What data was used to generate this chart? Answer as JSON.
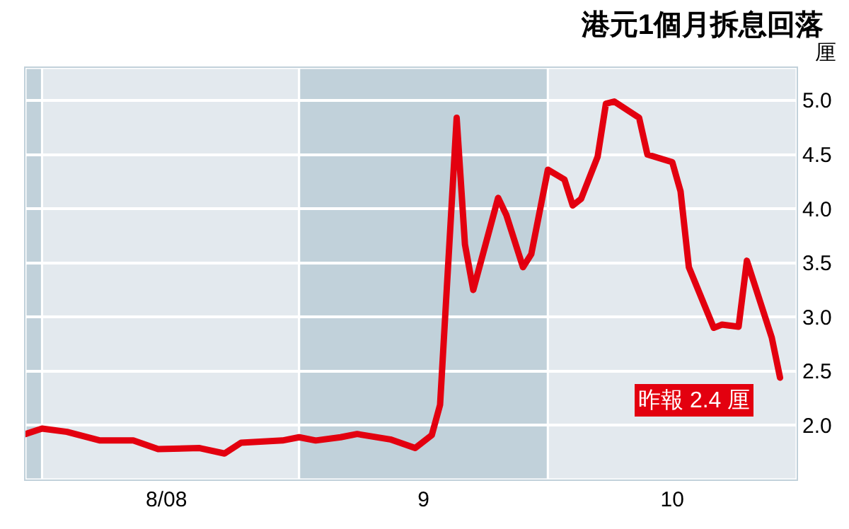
{
  "chart_data": {
    "type": "line",
    "title": "港元1個月拆息回落",
    "ylabel": "厘",
    "x": [
      "2008-07-30",
      "2008-08-01",
      "2008-08-04",
      "2008-08-08",
      "2008-08-12",
      "2008-08-15",
      "2008-08-20",
      "2008-08-23",
      "2008-08-25",
      "2008-08-30",
      "2008-09-01",
      "2008-09-03",
      "2008-09-06",
      "2008-09-08",
      "2008-09-12",
      "2008-09-15",
      "2008-09-17",
      "2008-09-18",
      "2008-09-20",
      "2008-09-21",
      "2008-09-22",
      "2008-09-25",
      "2008-09-26",
      "2008-09-28",
      "2008-09-29",
      "2008-10-01",
      "2008-10-03",
      "2008-10-04",
      "2008-10-05",
      "2008-10-07",
      "2008-10-08",
      "2008-10-09",
      "2008-10-12",
      "2008-10-13",
      "2008-10-16",
      "2008-10-17",
      "2008-10-18",
      "2008-10-21",
      "2008-10-22",
      "2008-10-24",
      "2008-10-25",
      "2008-10-28",
      "2008-10-29"
    ],
    "series": [
      {
        "color": "#e3000f",
        "values": [
          1.92,
          1.97,
          1.94,
          1.86,
          1.86,
          1.78,
          1.79,
          1.74,
          1.84,
          1.86,
          1.89,
          1.86,
          1.89,
          1.92,
          1.87,
          1.79,
          1.91,
          2.19,
          4.84,
          3.67,
          3.25,
          4.1,
          3.94,
          3.46,
          3.58,
          4.36,
          4.27,
          4.03,
          4.09,
          4.48,
          4.97,
          4.99,
          4.84,
          4.5,
          4.43,
          4.16,
          3.46,
          2.9,
          2.93,
          2.91,
          3.52,
          2.81,
          2.44
        ]
      }
    ],
    "xlim": [
      "2008-07-30",
      "2008-10-31"
    ],
    "xticks": [
      {
        "value": "2008-08-16",
        "label": "8/08"
      },
      {
        "value": "2008-09-16",
        "label": "9"
      },
      {
        "value": "2008-10-16",
        "label": "10"
      }
    ],
    "ylim": [
      1.5,
      5.3
    ],
    "yticks": [
      {
        "value": 2,
        "label": "2.0"
      },
      2.5,
      {
        "value": 3,
        "label": "3.0"
      },
      3.5,
      {
        "value": 4,
        "label": "4.0"
      },
      4.5,
      {
        "value": 5,
        "label": "5.0"
      }
    ],
    "bands": [
      {
        "axis": "x",
        "from": "2008-07-30",
        "to": "2008-08-01",
        "color": "#c1d1da"
      },
      {
        "axis": "x",
        "from": "2008-08-01",
        "to": "2008-09-01",
        "color": "#e3e9ee"
      },
      {
        "axis": "x",
        "from": "2008-09-01",
        "to": "2008-10-01",
        "color": "#c1d1da"
      },
      {
        "axis": "x",
        "from": "2008-10-01",
        "to": "2008-10-31",
        "color": "#e3e9ee"
      }
    ],
    "annotations": [
      {
        "text": "昨報 2.4 厘",
        "x": "2008-10-29",
        "y": 2.44
      }
    ],
    "grid": "y",
    "marker": "none",
    "line_style": "solid"
  }
}
